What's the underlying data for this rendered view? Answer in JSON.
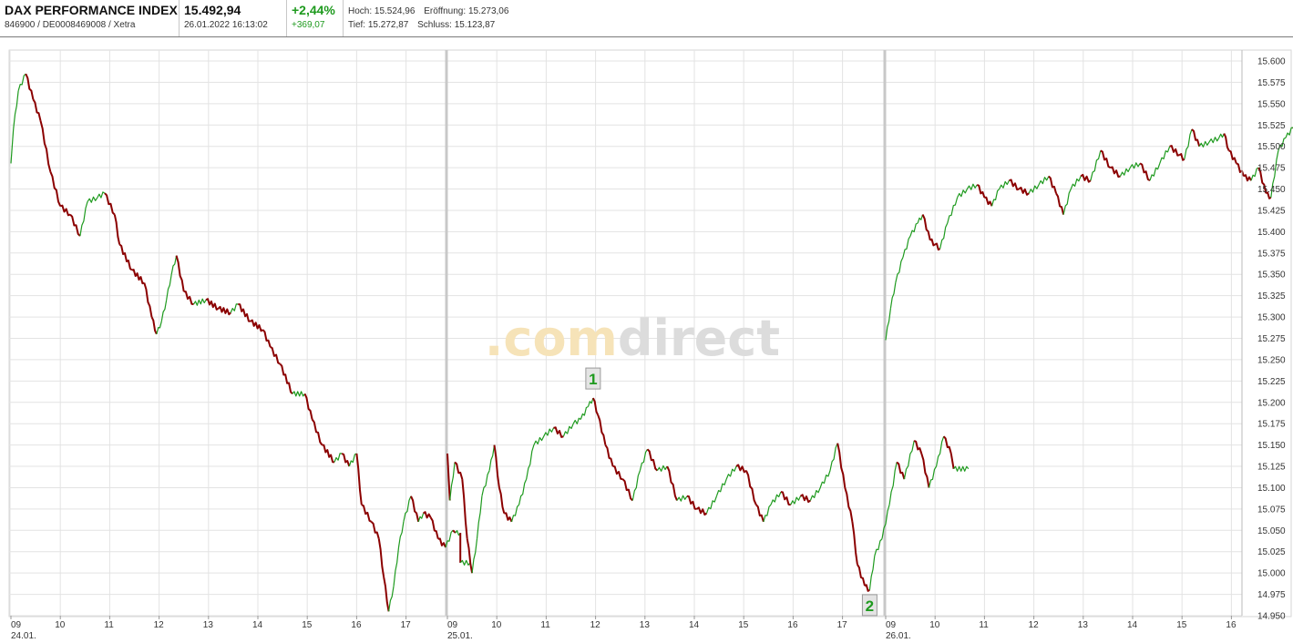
{
  "header": {
    "name": "DAX PERFORMANCE INDEX",
    "id_line": "846900 / DE0008469008 / Xetra",
    "price": "15.492,94",
    "datetime": "26.01.2022 16:13:02",
    "change_pct": "+2,44%",
    "change_abs": "+369,07",
    "high_label": "Hoch:",
    "high_value": "15.524,96",
    "open_label": "Eröffnung:",
    "open_value": "15.273,06",
    "low_label": "Tief:",
    "low_value": "15.272,87",
    "close_label": "Schluss:",
    "close_value": "15.123,87"
  },
  "watermark": {
    "prefix": ".com",
    "suffix": "direct"
  },
  "colors": {
    "up": "#1e9a1e",
    "down": "#8b0000",
    "grid": "#e3e3e3",
    "session": "#c8c8c8"
  },
  "chart_data": {
    "type": "line",
    "ylim": [
      14950,
      15600
    ],
    "y_ticks": [
      "15.600",
      "15.575",
      "15.550",
      "15.525",
      "15.500",
      "15.475",
      "15.450",
      "15.425",
      "15.400",
      "15.375",
      "15.350",
      "15.325",
      "15.300",
      "15.275",
      "15.250",
      "15.225",
      "15.200",
      "15.175",
      "15.150",
      "15.125",
      "15.100",
      "15.075",
      "15.050",
      "15.025",
      "15.000",
      "14.975",
      "14.950"
    ],
    "x_ticks": [
      "09",
      "10",
      "11",
      "12",
      "13",
      "14",
      "15",
      "16",
      "17",
      "09",
      "10",
      "11",
      "12",
      "13",
      "14",
      "15",
      "16",
      "17",
      "09",
      "10",
      "11",
      "12",
      "13",
      "14",
      "15",
      "16"
    ],
    "date_labels": [
      {
        "day": 0,
        "label": "24.01."
      },
      {
        "day": 1,
        "label": "25.01."
      },
      {
        "day": 2,
        "label": "26.01."
      }
    ],
    "x_unit": "hours since 09:00 per trading day",
    "days": [
      {
        "date": "24.01.",
        "points": [
          [
            0.0,
            15480
          ],
          [
            0.05,
            15520
          ],
          [
            0.15,
            15565
          ],
          [
            0.3,
            15585
          ],
          [
            0.45,
            15555
          ],
          [
            0.6,
            15530
          ],
          [
            0.8,
            15470
          ],
          [
            1.0,
            15430
          ],
          [
            1.2,
            15420
          ],
          [
            1.4,
            15395
          ],
          [
            1.55,
            15435
          ],
          [
            1.75,
            15440
          ],
          [
            1.9,
            15445
          ],
          [
            2.1,
            15420
          ],
          [
            2.2,
            15385
          ],
          [
            2.45,
            15355
          ],
          [
            2.7,
            15340
          ],
          [
            2.85,
            15300
          ],
          [
            2.95,
            15280
          ],
          [
            3.05,
            15295
          ],
          [
            3.15,
            15320
          ],
          [
            3.25,
            15350
          ],
          [
            3.35,
            15372
          ],
          [
            3.5,
            15330
          ],
          [
            3.7,
            15315
          ],
          [
            3.95,
            15320
          ],
          [
            4.2,
            15310
          ],
          [
            4.45,
            15305
          ],
          [
            4.6,
            15315
          ],
          [
            4.85,
            15295
          ],
          [
            5.1,
            15285
          ],
          [
            5.25,
            15265
          ],
          [
            5.45,
            15245
          ],
          [
            5.7,
            15210
          ],
          [
            5.95,
            15210
          ],
          [
            6.1,
            15180
          ],
          [
            6.3,
            15150
          ],
          [
            6.55,
            15130
          ],
          [
            6.7,
            15140
          ],
          [
            6.85,
            15125
          ],
          [
            7.0,
            15140
          ],
          [
            7.1,
            15080
          ],
          [
            7.3,
            15060
          ],
          [
            7.45,
            15040
          ],
          [
            7.55,
            14995
          ],
          [
            7.65,
            14955
          ],
          [
            7.75,
            14985
          ],
          [
            7.85,
            15030
          ],
          [
            7.95,
            15060
          ],
          [
            8.1,
            15090
          ],
          [
            8.25,
            15060
          ],
          [
            8.35,
            15070
          ],
          [
            8.5,
            15065
          ],
          [
            8.65,
            15040
          ],
          [
            8.8,
            15030
          ],
          [
            8.95,
            15050
          ],
          [
            9.0,
            15047
          ],
          [
            9.1,
            15047
          ],
          [
            9.1,
            15012
          ],
          [
            9.3,
            15012
          ]
        ]
      },
      {
        "date": "25.01.",
        "points": [
          [
            0.0,
            15140
          ],
          [
            0.05,
            15085
          ],
          [
            0.15,
            15130
          ],
          [
            0.3,
            15110
          ],
          [
            0.4,
            15040
          ],
          [
            0.5,
            15000
          ],
          [
            0.6,
            15040
          ],
          [
            0.7,
            15090
          ],
          [
            0.85,
            15120
          ],
          [
            0.95,
            15150
          ],
          [
            1.05,
            15100
          ],
          [
            1.15,
            15070
          ],
          [
            1.3,
            15060
          ],
          [
            1.45,
            15080
          ],
          [
            1.6,
            15110
          ],
          [
            1.75,
            15150
          ],
          [
            1.95,
            15160
          ],
          [
            2.15,
            15170
          ],
          [
            2.35,
            15160
          ],
          [
            2.55,
            15175
          ],
          [
            2.7,
            15180
          ],
          [
            2.85,
            15195
          ],
          [
            2.95,
            15205
          ],
          [
            3.05,
            15185
          ],
          [
            3.2,
            15150
          ],
          [
            3.35,
            15125
          ],
          [
            3.55,
            15110
          ],
          [
            3.75,
            15085
          ],
          [
            3.9,
            15120
          ],
          [
            4.05,
            15145
          ],
          [
            4.25,
            15120
          ],
          [
            4.45,
            15125
          ],
          [
            4.65,
            15085
          ],
          [
            4.85,
            15090
          ],
          [
            5.05,
            15075
          ],
          [
            5.25,
            15070
          ],
          [
            5.45,
            15090
          ],
          [
            5.65,
            15110
          ],
          [
            5.85,
            15125
          ],
          [
            6.05,
            15120
          ],
          [
            6.25,
            15080
          ],
          [
            6.4,
            15060
          ],
          [
            6.55,
            15080
          ],
          [
            6.75,
            15095
          ],
          [
            6.95,
            15080
          ],
          [
            7.15,
            15090
          ],
          [
            7.35,
            15085
          ],
          [
            7.55,
            15100
          ],
          [
            7.75,
            15120
          ],
          [
            7.9,
            15152
          ],
          [
            8.05,
            15100
          ],
          [
            8.2,
            15060
          ],
          [
            8.3,
            15010
          ],
          [
            8.45,
            14985
          ],
          [
            8.55,
            14980
          ],
          [
            8.65,
            15020
          ],
          [
            8.8,
            15040
          ],
          [
            8.95,
            15080
          ],
          [
            9.1,
            15130
          ],
          [
            9.25,
            15110
          ],
          [
            9.45,
            15155
          ],
          [
            9.6,
            15140
          ],
          [
            9.75,
            15100
          ],
          [
            9.9,
            15125
          ],
          [
            10.05,
            15160
          ],
          [
            10.2,
            15140
          ],
          [
            10.25,
            15122
          ],
          [
            10.55,
            15122
          ]
        ]
      },
      {
        "date": "26.01.",
        "points": [
          [
            0.0,
            15273
          ],
          [
            0.1,
            15310
          ],
          [
            0.2,
            15340
          ],
          [
            0.35,
            15370
          ],
          [
            0.5,
            15395
          ],
          [
            0.65,
            15410
          ],
          [
            0.75,
            15420
          ],
          [
            0.9,
            15390
          ],
          [
            1.0,
            15385
          ],
          [
            1.1,
            15380
          ],
          [
            1.25,
            15410
          ],
          [
            1.45,
            15440
          ],
          [
            1.65,
            15450
          ],
          [
            1.85,
            15455
          ],
          [
            2.0,
            15440
          ],
          [
            2.15,
            15430
          ],
          [
            2.3,
            15450
          ],
          [
            2.5,
            15460
          ],
          [
            2.7,
            15450
          ],
          [
            2.9,
            15445
          ],
          [
            3.1,
            15455
          ],
          [
            3.3,
            15465
          ],
          [
            3.45,
            15445
          ],
          [
            3.6,
            15420
          ],
          [
            3.75,
            15450
          ],
          [
            3.95,
            15465
          ],
          [
            4.15,
            15460
          ],
          [
            4.35,
            15495
          ],
          [
            4.55,
            15475
          ],
          [
            4.75,
            15465
          ],
          [
            4.95,
            15475
          ],
          [
            5.15,
            15480
          ],
          [
            5.35,
            15460
          ],
          [
            5.55,
            15480
          ],
          [
            5.75,
            15500
          ],
          [
            5.95,
            15490
          ],
          [
            6.05,
            15485
          ],
          [
            6.2,
            15520
          ],
          [
            6.35,
            15500
          ],
          [
            6.55,
            15505
          ],
          [
            6.75,
            15510
          ],
          [
            6.85,
            15515
          ],
          [
            6.95,
            15495
          ],
          [
            7.1,
            15480
          ],
          [
            7.25,
            15465
          ],
          [
            7.4,
            15460
          ],
          [
            7.55,
            15475
          ],
          [
            7.7,
            15445
          ],
          [
            7.8,
            15440
          ],
          [
            7.95,
            15495
          ],
          [
            8.1,
            15510
          ],
          [
            8.25,
            15522
          ],
          [
            8.4,
            15500
          ],
          [
            8.5,
            15493
          ]
        ]
      }
    ],
    "annotations": [
      {
        "label": "1",
        "day": 1,
        "hour": 2.95,
        "value": 15205,
        "position": "above"
      },
      {
        "label": "2",
        "day": 1,
        "hour": 8.55,
        "value": 14980,
        "position": "below"
      }
    ]
  }
}
